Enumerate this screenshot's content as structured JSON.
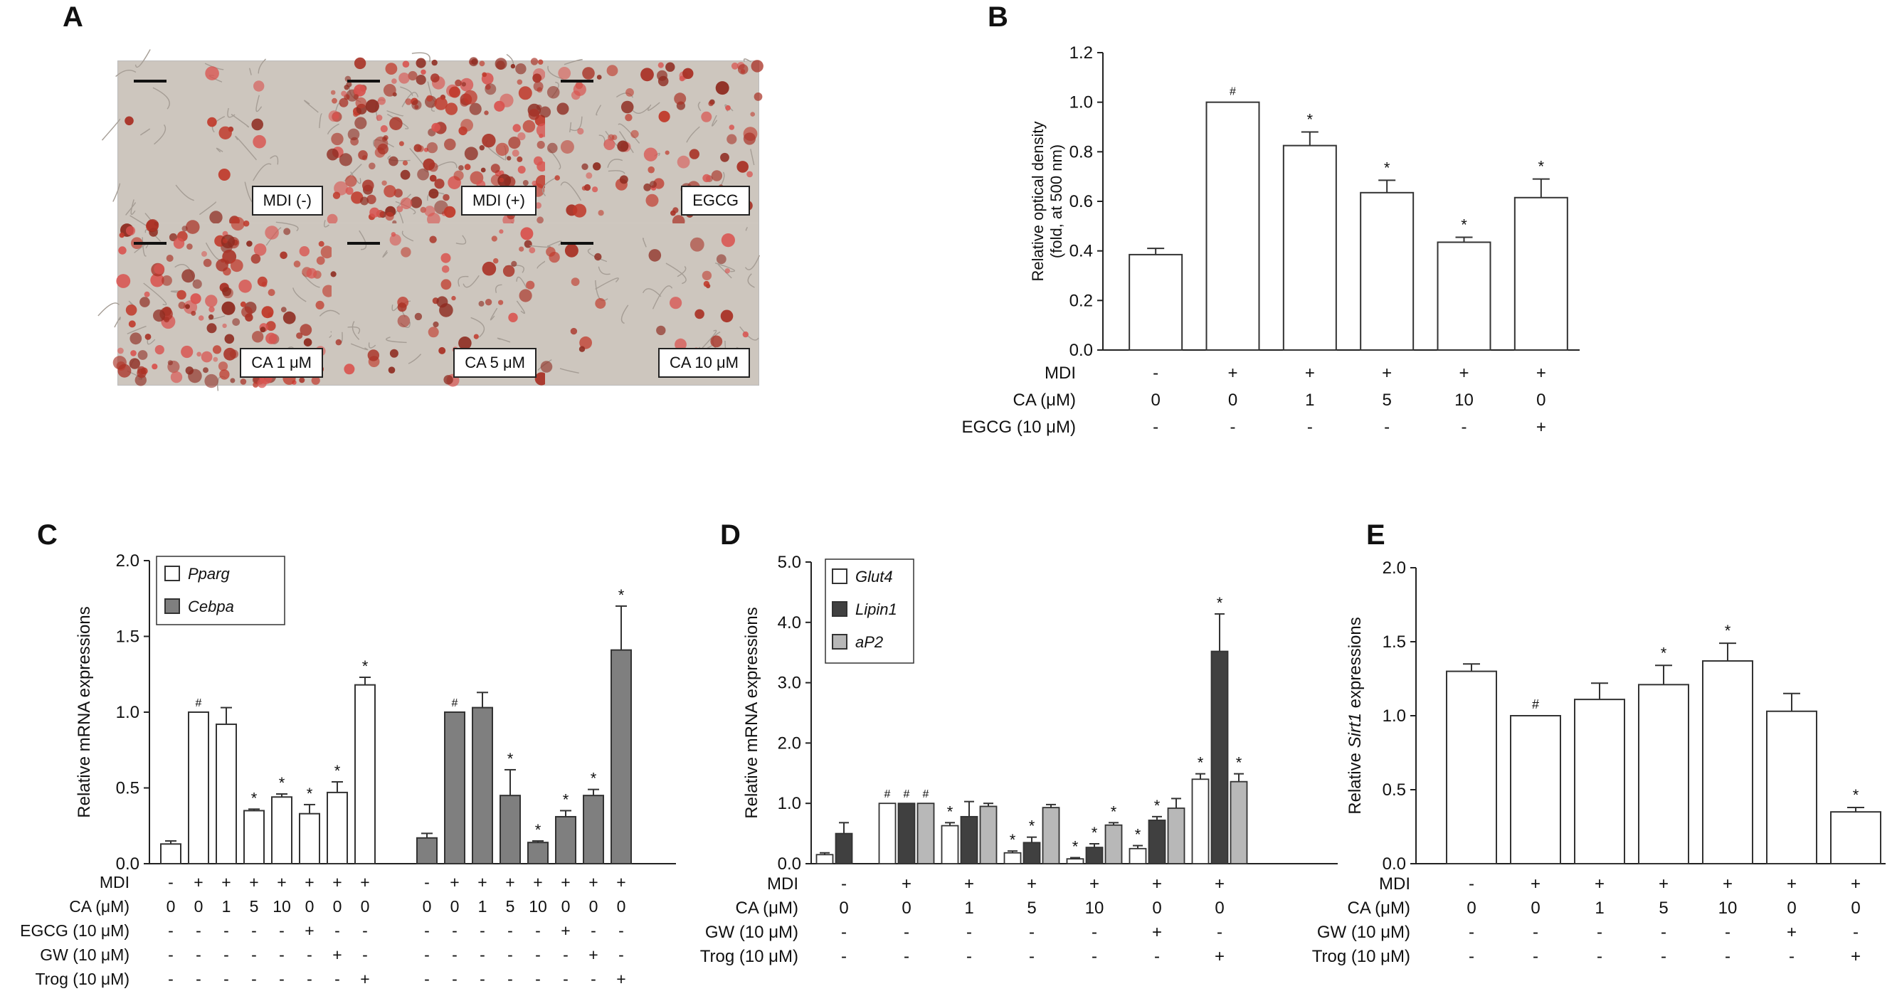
{
  "panels": {
    "A": "A",
    "B": "B",
    "C": "C",
    "D": "D",
    "E": "E"
  },
  "micrographs": {
    "tiles": [
      {
        "label": "MDI (-)",
        "stain": 0.05
      },
      {
        "label": "MDI (+)",
        "stain": 0.9
      },
      {
        "label": "EGCG",
        "stain": 0.4
      },
      {
        "label": "CA 1 μM",
        "stain": 0.7
      },
      {
        "label": "CA 5 μM",
        "stain": 0.22
      },
      {
        "label": "CA 10 μM",
        "stain": 0.12
      }
    ],
    "colors": {
      "background": "#cdc6be",
      "stain": "#c0392b"
    }
  },
  "chart_data": [
    {
      "id": "B",
      "type": "bar",
      "ylabel_lines": [
        "Relative optical density",
        "(fold, at 500 nm)"
      ],
      "ylim": [
        0,
        1.2
      ],
      "yticks": [
        "0.0",
        "0.2",
        "0.4",
        "0.6",
        "0.8",
        "1.0",
        "1.2"
      ],
      "values": [
        0.385,
        1.0,
        0.825,
        0.635,
        0.435,
        0.615
      ],
      "errors": [
        0.025,
        0,
        0.055,
        0.05,
        0.02,
        0.075
      ],
      "marks": [
        "",
        "#",
        "*",
        "*",
        "*",
        "*"
      ],
      "bar_color": "#ffffff",
      "conditions": [
        {
          "label": "MDI",
          "values": [
            "-",
            "+",
            "+",
            "+",
            "+",
            "+"
          ]
        },
        {
          "label": "CA (μM)",
          "values": [
            "0",
            "0",
            "1",
            "5",
            "10",
            "0"
          ]
        },
        {
          "label": "EGCG (10 μM)",
          "values": [
            "-",
            "-",
            "-",
            "-",
            "-",
            "+"
          ]
        }
      ]
    },
    {
      "id": "C",
      "type": "bar",
      "ylabel": "Relative mRNA expressions",
      "ylim": [
        0,
        2.0
      ],
      "yticks": [
        "0.0",
        "0.5",
        "1.0",
        "1.5",
        "2.0"
      ],
      "series": [
        {
          "name": "Pparg",
          "color": "#ffffff",
          "values": [
            0.13,
            1.0,
            0.92,
            0.35,
            0.44,
            0.33,
            0.47,
            1.18
          ],
          "errors": [
            0.02,
            0,
            0.11,
            0.01,
            0.02,
            0.06,
            0.07,
            0.05
          ],
          "marks": [
            "",
            "#",
            "",
            "*",
            "*",
            "*",
            "*",
            "*"
          ]
        },
        {
          "name": "Cebpa",
          "color": "#7f7f7f",
          "values": [
            0.17,
            1.0,
            1.03,
            0.45,
            0.14,
            0.31,
            0.45,
            1.41
          ],
          "errors": [
            0.03,
            0,
            0.1,
            0.17,
            0.01,
            0.04,
            0.04,
            0.29
          ],
          "marks": [
            "",
            "#",
            "",
            "*",
            "*",
            "*",
            "*",
            "*"
          ]
        }
      ],
      "conditions": [
        {
          "label": "MDI",
          "values": [
            "-",
            "+",
            "+",
            "+",
            "+",
            "+",
            "+",
            "+"
          ]
        },
        {
          "label": "CA (μM)",
          "values": [
            "0",
            "0",
            "1",
            "5",
            "10",
            "0",
            "0",
            "0"
          ]
        },
        {
          "label": "EGCG (10 μM)",
          "values": [
            "-",
            "-",
            "-",
            "-",
            "-",
            "+",
            "-",
            "-"
          ]
        },
        {
          "label": "GW (10 μM)",
          "values": [
            "-",
            "-",
            "-",
            "-",
            "-",
            "-",
            "+",
            "-"
          ]
        },
        {
          "label": "Trog (10 μM)",
          "values": [
            "-",
            "-",
            "-",
            "-",
            "-",
            "-",
            "-",
            "+"
          ]
        }
      ]
    },
    {
      "id": "D",
      "type": "bar",
      "ylabel": "Relative mRNA expressions",
      "ylim": [
        0,
        5.0
      ],
      "yticks": [
        "0.0",
        "1.0",
        "2.0",
        "3.0",
        "4.0",
        "5.0"
      ],
      "series": [
        {
          "name": "Glut4",
          "color": "#ffffff",
          "values": [
            0.15,
            1.0,
            0.63,
            0.18,
            0.08,
            0.25,
            1.4
          ],
          "errors": [
            0.03,
            0,
            0.05,
            0.03,
            0.02,
            0.05,
            0.09
          ],
          "marks": [
            "",
            "#",
            "*",
            "*",
            "*",
            "*",
            "*"
          ]
        },
        {
          "name": "Lipin1",
          "color": "#404040",
          "values": [
            0.5,
            1.0,
            0.78,
            0.35,
            0.27,
            0.72,
            3.52
          ],
          "errors": [
            0.18,
            0,
            0.25,
            0.09,
            0.06,
            0.06,
            0.62
          ],
          "marks": [
            "",
            "#",
            "",
            "*",
            "*",
            "*",
            "*"
          ]
        },
        {
          "name": "aP2",
          "color": "#b8b8b8",
          "values": [
            0.0,
            1.0,
            0.95,
            0.93,
            0.64,
            0.92,
            1.36
          ],
          "errors": [
            0,
            0,
            0.05,
            0.05,
            0.04,
            0.16,
            0.13
          ],
          "marks": [
            "",
            "#",
            "",
            "",
            "*",
            "",
            "*"
          ]
        }
      ],
      "conditions": [
        {
          "label": "MDI",
          "values": [
            "-",
            "+",
            "+",
            "+",
            "+",
            "+",
            "+"
          ]
        },
        {
          "label": "CA (μM)",
          "values": [
            "0",
            "0",
            "1",
            "5",
            "10",
            "0",
            "0"
          ]
        },
        {
          "label": "GW (10 μM)",
          "values": [
            "-",
            "-",
            "-",
            "-",
            "-",
            "+",
            "-"
          ]
        },
        {
          "label": "Trog (10 μM)",
          "values": [
            "-",
            "-",
            "-",
            "-",
            "-",
            "-",
            "+"
          ]
        }
      ]
    },
    {
      "id": "E",
      "type": "bar",
      "ylabel_parts": [
        "Relative ",
        "Sirt1",
        " expressions"
      ],
      "ylim": [
        0,
        2.0
      ],
      "yticks": [
        "0.0",
        "0.5",
        "1.0",
        "1.5",
        "2.0"
      ],
      "values": [
        1.3,
        1.0,
        1.11,
        1.21,
        1.37,
        1.03,
        0.35
      ],
      "errors": [
        0.05,
        0,
        0.11,
        0.13,
        0.12,
        0.12,
        0.03
      ],
      "marks": [
        "",
        "#",
        "",
        "*",
        "*",
        "",
        "*"
      ],
      "bar_color": "#ffffff",
      "conditions": [
        {
          "label": "MDI",
          "values": [
            "-",
            "+",
            "+",
            "+",
            "+",
            "+",
            "+"
          ]
        },
        {
          "label": "CA (μM)",
          "values": [
            "0",
            "0",
            "1",
            "5",
            "10",
            "0",
            "0"
          ]
        },
        {
          "label": "GW (10 μM)",
          "values": [
            "-",
            "-",
            "-",
            "-",
            "-",
            "+",
            "-"
          ]
        },
        {
          "label": "Trog (10 μM)",
          "values": [
            "-",
            "-",
            "-",
            "-",
            "-",
            "-",
            "+"
          ]
        }
      ]
    }
  ]
}
